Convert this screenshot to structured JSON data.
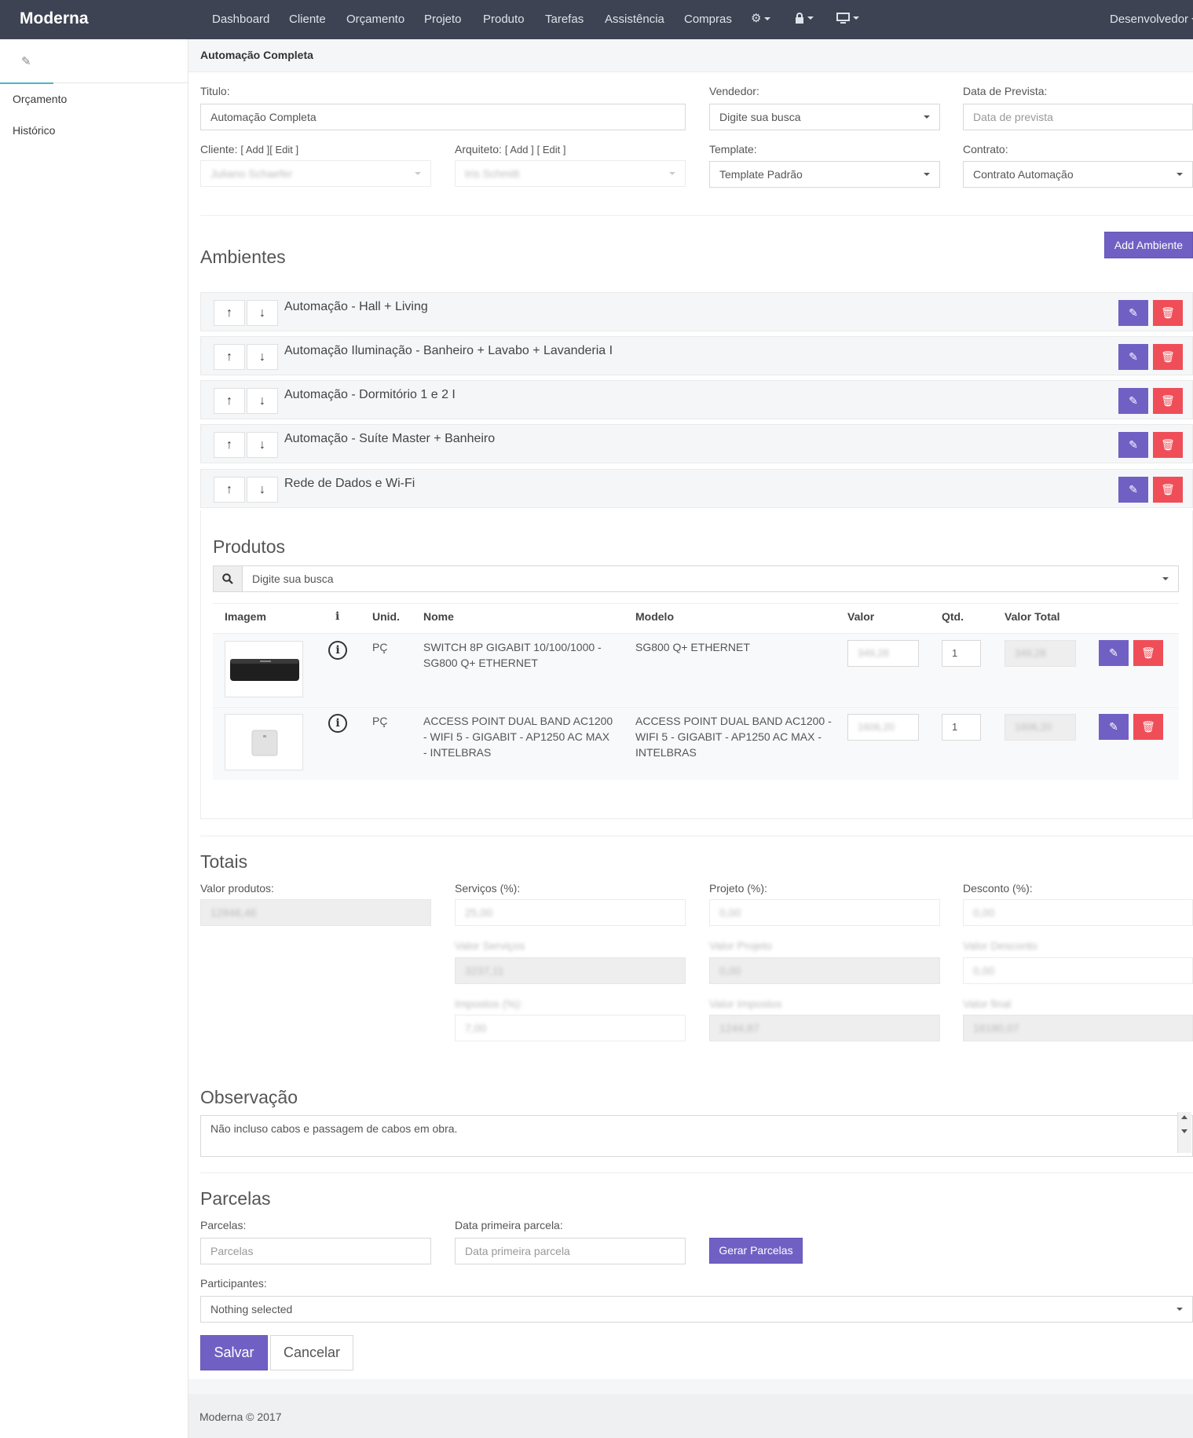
{
  "nav": {
    "brand": "Moderna",
    "items": [
      "Dashboard",
      "Cliente",
      "Orçamento",
      "Projeto",
      "Produto",
      "Tarefas",
      "Assistência",
      "Compras"
    ],
    "user": "Desenvolvedor",
    "icons": [
      "gear-icon",
      "lock-icon",
      "monitor-icon"
    ]
  },
  "sidebar": {
    "tab_icon": "edit-icon",
    "items": [
      "Orçamento",
      "Histórico"
    ]
  },
  "page": {
    "title": "Automação Completa"
  },
  "form": {
    "titulo_label": "Titulo:",
    "titulo_value": "Automação Completa",
    "vendedor_label": "Vendedor:",
    "vendedor_value": "Digite sua busca",
    "data_prevista_label": "Data de Prevista:",
    "data_prevista_placeholder": "Data de prevista",
    "cliente_label": "Cliente:",
    "cliente_add": "[ Add ]",
    "cliente_edit": "[ Edit ]",
    "cliente_value": "Juliano Schaefer",
    "arquiteto_label": "Arquiteto:",
    "arquiteto_add": "[ Add ]",
    "arquiteto_edit": "[ Edit ]",
    "arquiteto_value": "Iris Schmitt",
    "template_label": "Template:",
    "template_value": "Template Padrão",
    "contrato_label": "Contrato:",
    "contrato_value": "Contrato Automação"
  },
  "ambientes": {
    "title": "Ambientes",
    "add_button": "Add Ambiente",
    "rows": [
      "Automação - Hall + Living",
      "Automação Iluminação - Banheiro + Lavabo + Lavanderia I",
      "Automação - Dormitório 1 e 2 I",
      "Automação - Suíte Master + Banheiro",
      "Rede de Dados e Wi-Fi"
    ]
  },
  "produtos": {
    "title": "Produtos",
    "search_value": "Digite sua busca",
    "headers": {
      "imagem": "Imagem",
      "info": "i",
      "unid": "Unid.",
      "nome": "Nome",
      "modelo": "Modelo",
      "valor": "Valor",
      "qtd": "Qtd.",
      "valor_total": "Valor Total"
    },
    "rows": [
      {
        "unid": "PÇ",
        "nome": "SWITCH 8P GIGABIT 10/100/1000 - SG800 Q+ ETHERNET",
        "modelo": "SG800 Q+ ETHERNET",
        "valor": "349,28",
        "qtd": "1",
        "valor_total": "349,28"
      },
      {
        "unid": "PÇ",
        "nome": "ACCESS POINT DUAL BAND AC1200 - WIFI 5 - GIGABIT - AP1250 AC MAX - INTELBRAS",
        "modelo": "ACCESS POINT DUAL BAND AC1200 - WIFI 5 - GIGABIT - AP1250 AC MAX - INTELBRAS",
        "valor": "1606,20",
        "qtd": "1",
        "valor_total": "1606,20"
      }
    ]
  },
  "totais": {
    "title": "Totais",
    "valor_produtos_label": "Valor produtos:",
    "valor_produtos": "12846,46",
    "servicos_label": "Serviços (%):",
    "servicos": "25,00",
    "projeto_label": "Projeto (%):",
    "projeto": "0,00",
    "desconto_label": "Desconto (%):",
    "desconto": "0,00",
    "valor_servicos_label": "Valor Serviços",
    "valor_servicos": "3237,11",
    "valor_projeto_label": "Valor Projeto",
    "valor_projeto": "0,00",
    "valor_desconto_label": "Valor Desconto",
    "valor_desconto": "0,00",
    "impostos_label": "Impostos (%):",
    "impostos": "7,00",
    "valor_impostos_label": "Valor Impostos",
    "valor_impostos": "1244,87",
    "valor_final_label": "Valor final",
    "valor_final": "16180,07"
  },
  "observacao": {
    "title": "Observação",
    "text": "Não incluso cabos e passagem de cabos em obra."
  },
  "parcelas": {
    "title": "Parcelas",
    "parcelas_label": "Parcelas:",
    "parcelas_placeholder": "Parcelas",
    "data_label": "Data primeira parcela:",
    "data_placeholder": "Data primeira parcela",
    "gerar_button": "Gerar Parcelas",
    "participantes_label": "Participantes:",
    "participantes_value": "Nothing selected"
  },
  "actions": {
    "save": "Salvar",
    "cancel": "Cancelar"
  },
  "footer": "Moderna © 2017"
}
